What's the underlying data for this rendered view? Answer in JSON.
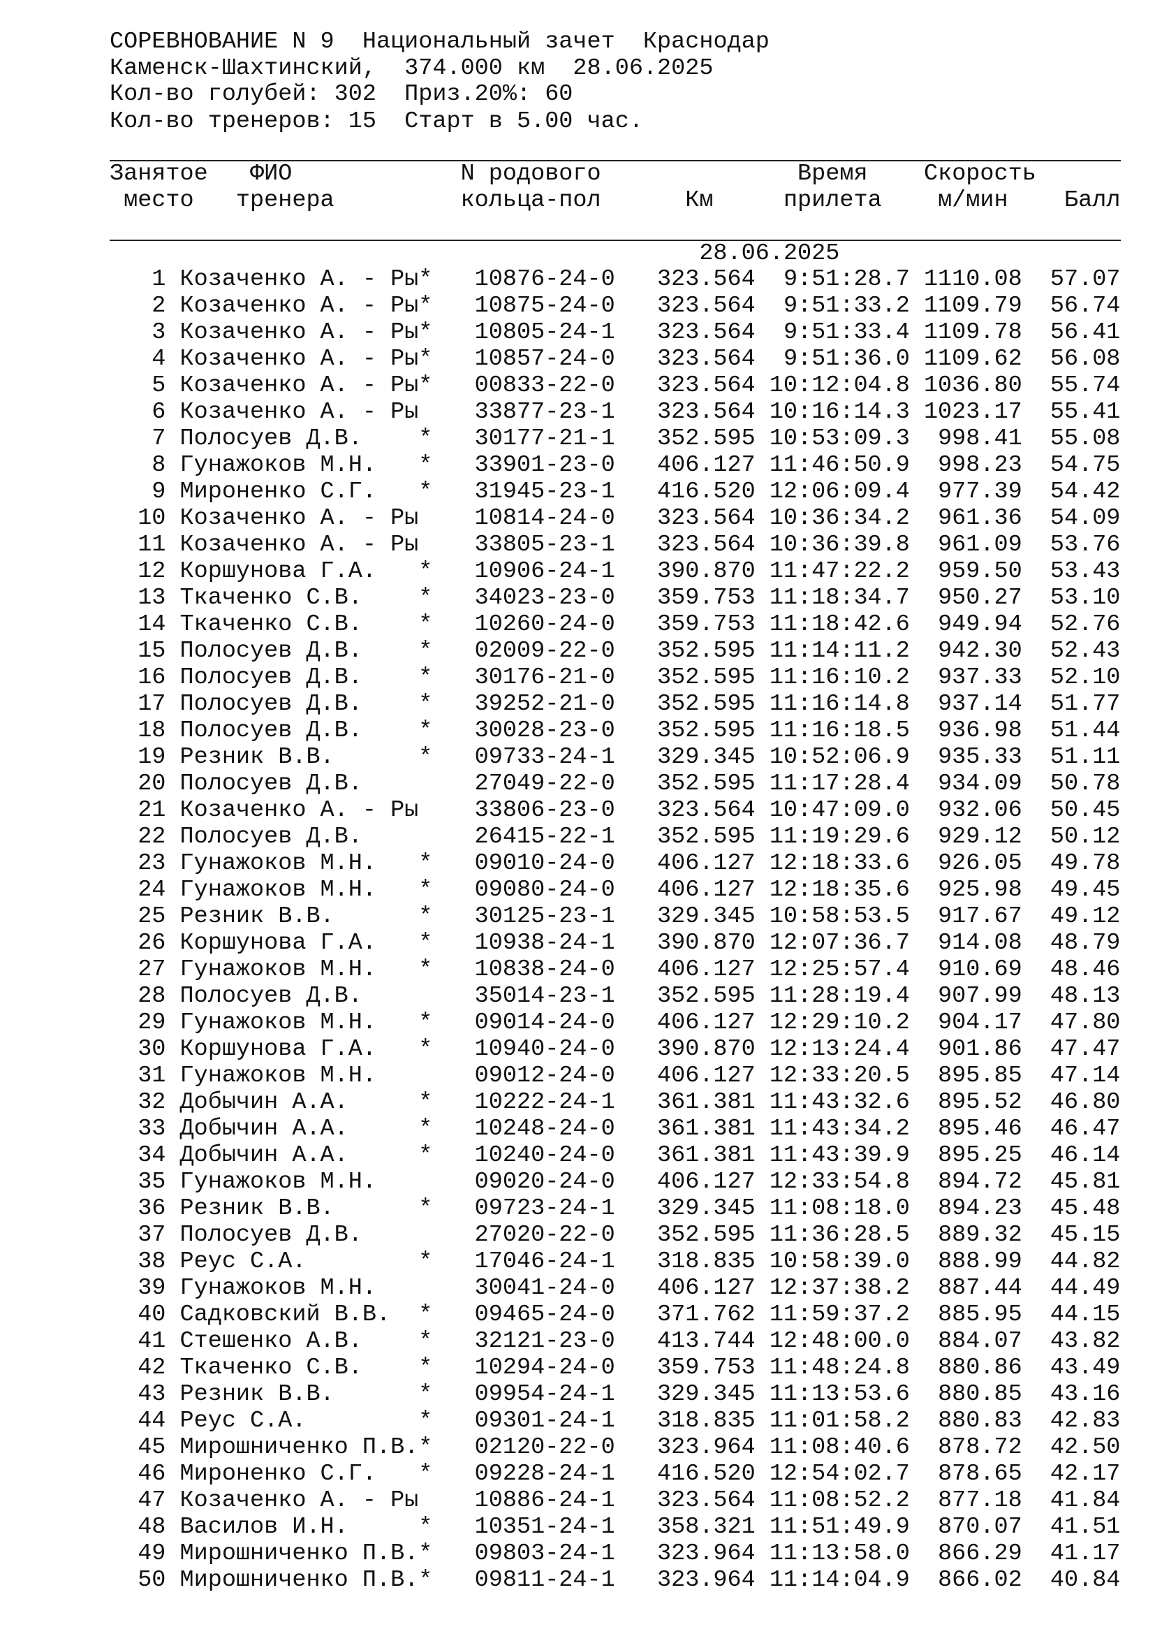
{
  "header": {
    "line1": "СОРЕВНОВАНИЕ N 9  Национальный зачет  Краснодар",
    "line2": "Каменск-Шахтинский,  374.000 км  28.06.2025",
    "line3": "Кол-во голубей: 302  Приз.20%: 60",
    "line4": "Кол-во тренеров: 15  Старт в 5.00 час."
  },
  "columns": {
    "place_1": "Занятое",
    "place_2": "место",
    "name_1": "ФИО",
    "name_2": "тренера",
    "ring_1": "N родового",
    "ring_2": "кольца-пол",
    "km": "Км",
    "time_1": "Время",
    "time_2": "прилета",
    "speed_1": "Скорость",
    "speed_2": "м/мин",
    "points": "Балл"
  },
  "date_group": "28.06.2025",
  "rows": [
    [
      "1",
      "Козаченко А. - Ры",
      "*",
      "10876-24-0",
      "323.564",
      "9:51:28.7",
      "1110.08",
      "57.07"
    ],
    [
      "2",
      "Козаченко А. - Ры",
      "*",
      "10875-24-0",
      "323.564",
      "9:51:33.2",
      "1109.79",
      "56.74"
    ],
    [
      "3",
      "Козаченко А. - Ры",
      "*",
      "10805-24-1",
      "323.564",
      "9:51:33.4",
      "1109.78",
      "56.41"
    ],
    [
      "4",
      "Козаченко А. - Ры",
      "*",
      "10857-24-0",
      "323.564",
      "9:51:36.0",
      "1109.62",
      "56.08"
    ],
    [
      "5",
      "Козаченко А. - Ры",
      "*",
      "00833-22-0",
      "323.564",
      "10:12:04.8",
      "1036.80",
      "55.74"
    ],
    [
      "6",
      "Козаченко А. - Ры",
      "",
      "33877-23-1",
      "323.564",
      "10:16:14.3",
      "1023.17",
      "55.41"
    ],
    [
      "7",
      "Полосуев Д.В.",
      "*",
      "30177-21-1",
      "352.595",
      "10:53:09.3",
      "998.41",
      "55.08"
    ],
    [
      "8",
      "Гунажоков М.Н.",
      "*",
      "33901-23-0",
      "406.127",
      "11:46:50.9",
      "998.23",
      "54.75"
    ],
    [
      "9",
      "Мироненко С.Г.",
      "*",
      "31945-23-1",
      "416.520",
      "12:06:09.4",
      "977.39",
      "54.42"
    ],
    [
      "10",
      "Козаченко А. - Ры",
      "",
      "10814-24-0",
      "323.564",
      "10:36:34.2",
      "961.36",
      "54.09"
    ],
    [
      "11",
      "Козаченко А. - Ры",
      "",
      "33805-23-1",
      "323.564",
      "10:36:39.8",
      "961.09",
      "53.76"
    ],
    [
      "12",
      "Коршунова Г.А.",
      "*",
      "10906-24-1",
      "390.870",
      "11:47:22.2",
      "959.50",
      "53.43"
    ],
    [
      "13",
      "Ткаченко С.В.",
      "*",
      "34023-23-0",
      "359.753",
      "11:18:34.7",
      "950.27",
      "53.10"
    ],
    [
      "14",
      "Ткаченко С.В.",
      "*",
      "10260-24-0",
      "359.753",
      "11:18:42.6",
      "949.94",
      "52.76"
    ],
    [
      "15",
      "Полосуев Д.В.",
      "*",
      "02009-22-0",
      "352.595",
      "11:14:11.2",
      "942.30",
      "52.43"
    ],
    [
      "16",
      "Полосуев Д.В.",
      "*",
      "30176-21-0",
      "352.595",
      "11:16:10.2",
      "937.33",
      "52.10"
    ],
    [
      "17",
      "Полосуев Д.В.",
      "*",
      "39252-21-0",
      "352.595",
      "11:16:14.8",
      "937.14",
      "51.77"
    ],
    [
      "18",
      "Полосуев Д.В.",
      "*",
      "30028-23-0",
      "352.595",
      "11:16:18.5",
      "936.98",
      "51.44"
    ],
    [
      "19",
      "Резник В.В.",
      "*",
      "09733-24-1",
      "329.345",
      "10:52:06.9",
      "935.33",
      "51.11"
    ],
    [
      "20",
      "Полосуев Д.В.",
      "",
      "27049-22-0",
      "352.595",
      "11:17:28.4",
      "934.09",
      "50.78"
    ],
    [
      "21",
      "Козаченко А. - Ры",
      "",
      "33806-23-0",
      "323.564",
      "10:47:09.0",
      "932.06",
      "50.45"
    ],
    [
      "22",
      "Полосуев Д.В.",
      "",
      "26415-22-1",
      "352.595",
      "11:19:29.6",
      "929.12",
      "50.12"
    ],
    [
      "23",
      "Гунажоков М.Н.",
      "*",
      "09010-24-0",
      "406.127",
      "12:18:33.6",
      "926.05",
      "49.78"
    ],
    [
      "24",
      "Гунажоков М.Н.",
      "*",
      "09080-24-0",
      "406.127",
      "12:18:35.6",
      "925.98",
      "49.45"
    ],
    [
      "25",
      "Резник В.В.",
      "*",
      "30125-23-1",
      "329.345",
      "10:58:53.5",
      "917.67",
      "49.12"
    ],
    [
      "26",
      "Коршунова Г.А.",
      "*",
      "10938-24-1",
      "390.870",
      "12:07:36.7",
      "914.08",
      "48.79"
    ],
    [
      "27",
      "Гунажоков М.Н.",
      "*",
      "10838-24-0",
      "406.127",
      "12:25:57.4",
      "910.69",
      "48.46"
    ],
    [
      "28",
      "Полосуев Д.В.",
      "",
      "35014-23-1",
      "352.595",
      "11:28:19.4",
      "907.99",
      "48.13"
    ],
    [
      "29",
      "Гунажоков М.Н.",
      "*",
      "09014-24-0",
      "406.127",
      "12:29:10.2",
      "904.17",
      "47.80"
    ],
    [
      "30",
      "Коршунова Г.А.",
      "*",
      "10940-24-0",
      "390.870",
      "12:13:24.4",
      "901.86",
      "47.47"
    ],
    [
      "31",
      "Гунажоков М.Н.",
      "",
      "09012-24-0",
      "406.127",
      "12:33:20.5",
      "895.85",
      "47.14"
    ],
    [
      "32",
      "Добычин А.А.",
      "*",
      "10222-24-1",
      "361.381",
      "11:43:32.6",
      "895.52",
      "46.80"
    ],
    [
      "33",
      "Добычин А.А.",
      "*",
      "10248-24-0",
      "361.381",
      "11:43:34.2",
      "895.46",
      "46.47"
    ],
    [
      "34",
      "Добычин А.А.",
      "*",
      "10240-24-0",
      "361.381",
      "11:43:39.9",
      "895.25",
      "46.14"
    ],
    [
      "35",
      "Гунажоков М.Н.",
      "",
      "09020-24-0",
      "406.127",
      "12:33:54.8",
      "894.72",
      "45.81"
    ],
    [
      "36",
      "Резник В.В.",
      "*",
      "09723-24-1",
      "329.345",
      "11:08:18.0",
      "894.23",
      "45.48"
    ],
    [
      "37",
      "Полосуев Д.В.",
      "",
      "27020-22-0",
      "352.595",
      "11:36:28.5",
      "889.32",
      "45.15"
    ],
    [
      "38",
      "Реус С.А.",
      "*",
      "17046-24-1",
      "318.835",
      "10:58:39.0",
      "888.99",
      "44.82"
    ],
    [
      "39",
      "Гунажоков М.Н.",
      "",
      "30041-24-0",
      "406.127",
      "12:37:38.2",
      "887.44",
      "44.49"
    ],
    [
      "40",
      "Садковский В.В.",
      "*",
      "09465-24-0",
      "371.762",
      "11:59:37.2",
      "885.95",
      "44.15"
    ],
    [
      "41",
      "Стешенко А.В.",
      "*",
      "32121-23-0",
      "413.744",
      "12:48:00.0",
      "884.07",
      "43.82"
    ],
    [
      "42",
      "Ткаченко С.В.",
      "*",
      "10294-24-0",
      "359.753",
      "11:48:24.8",
      "880.86",
      "43.49"
    ],
    [
      "43",
      "Резник В.В.",
      "*",
      "09954-24-1",
      "329.345",
      "11:13:53.6",
      "880.85",
      "43.16"
    ],
    [
      "44",
      "Реус С.А.",
      "*",
      "09301-24-1",
      "318.835",
      "11:01:58.2",
      "880.83",
      "42.83"
    ],
    [
      "45",
      "Мирошниченко П.В.",
      "*",
      "02120-22-0",
      "323.964",
      "11:08:40.6",
      "878.72",
      "42.50"
    ],
    [
      "46",
      "Мироненко С.Г.",
      "*",
      "09228-24-1",
      "416.520",
      "12:54:02.7",
      "878.65",
      "42.17"
    ],
    [
      "47",
      "Козаченко А. - Ры",
      "",
      "10886-24-1",
      "323.564",
      "11:08:52.2",
      "877.18",
      "41.84"
    ],
    [
      "48",
      "Василов И.Н.",
      "*",
      "10351-24-1",
      "358.321",
      "11:51:49.9",
      "870.07",
      "41.51"
    ],
    [
      "49",
      "Мирошниченко П.В.",
      "*",
      "09803-24-1",
      "323.964",
      "11:13:58.0",
      "866.29",
      "41.17"
    ],
    [
      "50",
      "Мирошниченко П.В.",
      "*",
      "09811-24-1",
      "323.964",
      "11:14:04.9",
      "866.02",
      "40.84"
    ]
  ]
}
